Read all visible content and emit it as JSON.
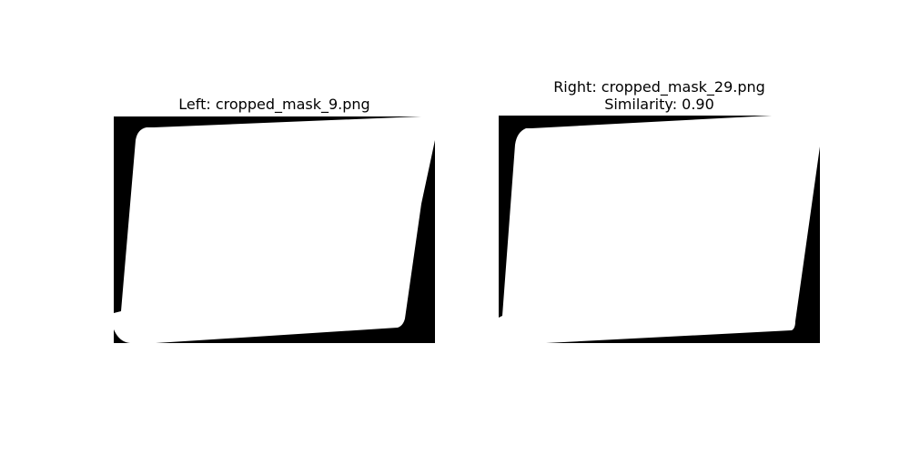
{
  "left_panel": {
    "title": "Left: cropped_mask_9.png",
    "background_color": "#000000",
    "mask_color": "#ffffff"
  },
  "right_panel": {
    "title": "Right: cropped_mask_29.png",
    "similarity_text": "Similarity: 0.90",
    "background_color": "#000000",
    "mask_color": "#ffffff"
  }
}
